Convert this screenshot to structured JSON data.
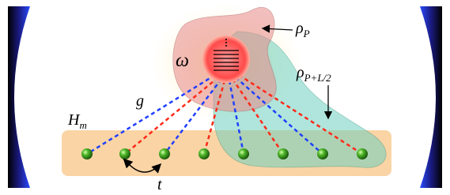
{
  "labels": {
    "rho_p": {
      "symbol": "ρ",
      "sub": "P"
    },
    "rho_pl2": {
      "symbol": "ρ",
      "sub": "P+L/2"
    },
    "omega": "ω",
    "g": "g",
    "h_m": {
      "symbol": "H",
      "sub": "m"
    },
    "t": "t"
  }
}
